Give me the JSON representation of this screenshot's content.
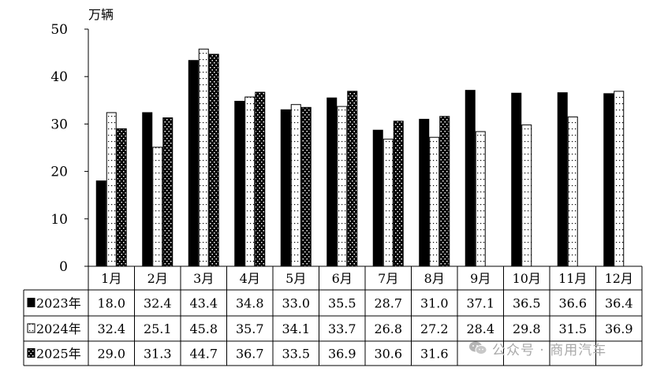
{
  "chart_data": {
    "type": "bar",
    "unit_label": "万辆",
    "categories": [
      "1月",
      "2月",
      "3月",
      "4月",
      "5月",
      "6月",
      "7月",
      "8月",
      "9月",
      "10月",
      "11月",
      "12月"
    ],
    "series": [
      {
        "name": "2023年",
        "pattern": "solid",
        "values": [
          18.0,
          32.4,
          43.4,
          34.8,
          33.0,
          35.5,
          28.7,
          31.0,
          37.1,
          36.5,
          36.6,
          36.4
        ],
        "labels": [
          "18.0",
          "32.4",
          "43.4",
          "34.8",
          "33.0",
          "35.5",
          "28.7",
          "31.0",
          "37.1",
          "36.5",
          "36.6",
          "36.4"
        ]
      },
      {
        "name": "2024年",
        "pattern": "white-sparse-dots",
        "values": [
          32.4,
          25.1,
          45.8,
          35.7,
          34.1,
          33.7,
          26.8,
          27.2,
          28.4,
          29.8,
          31.5,
          36.9
        ],
        "labels": [
          "32.4",
          "25.1",
          "45.8",
          "35.7",
          "34.1",
          "33.7",
          "26.8",
          "27.2",
          "28.4",
          "29.8",
          "31.5",
          "36.9"
        ]
      },
      {
        "name": "2025年",
        "pattern": "black-white-dots",
        "values": [
          29.0,
          31.3,
          44.7,
          36.7,
          33.5,
          36.9,
          30.6,
          31.6,
          null,
          null,
          null,
          null
        ],
        "labels": [
          "29.0",
          "31.3",
          "44.7",
          "36.7",
          "33.5",
          "36.9",
          "30.6",
          "31.6",
          "",
          "",
          "",
          ""
        ]
      }
    ],
    "ylim": [
      0,
      50
    ],
    "yticks": [
      0,
      10,
      20,
      30,
      40,
      50
    ],
    "legend": "data-table-rows",
    "grid": false
  },
  "watermark": {
    "text": "公众号 · 商用汽车",
    "icon": "wechat-icon"
  }
}
